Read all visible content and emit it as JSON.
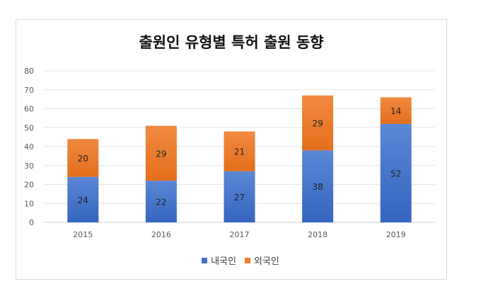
{
  "chart_data": {
    "type": "bar",
    "stacked": true,
    "title": "출원인 유형별 특허 출원 동향",
    "categories": [
      "2015",
      "2016",
      "2017",
      "2018",
      "2019"
    ],
    "series": [
      {
        "name": "내국인",
        "values": [
          24,
          22,
          27,
          38,
          52
        ],
        "color": "#4472c4"
      },
      {
        "name": "외국인",
        "values": [
          20,
          29,
          21,
          29,
          14
        ],
        "color": "#ed7d31"
      }
    ],
    "ylim": [
      0,
      80
    ],
    "yticks": [
      0,
      10,
      20,
      30,
      40,
      50,
      60,
      70,
      80
    ],
    "grid": true,
    "legend": "bottom",
    "xlabel": "",
    "ylabel": ""
  }
}
